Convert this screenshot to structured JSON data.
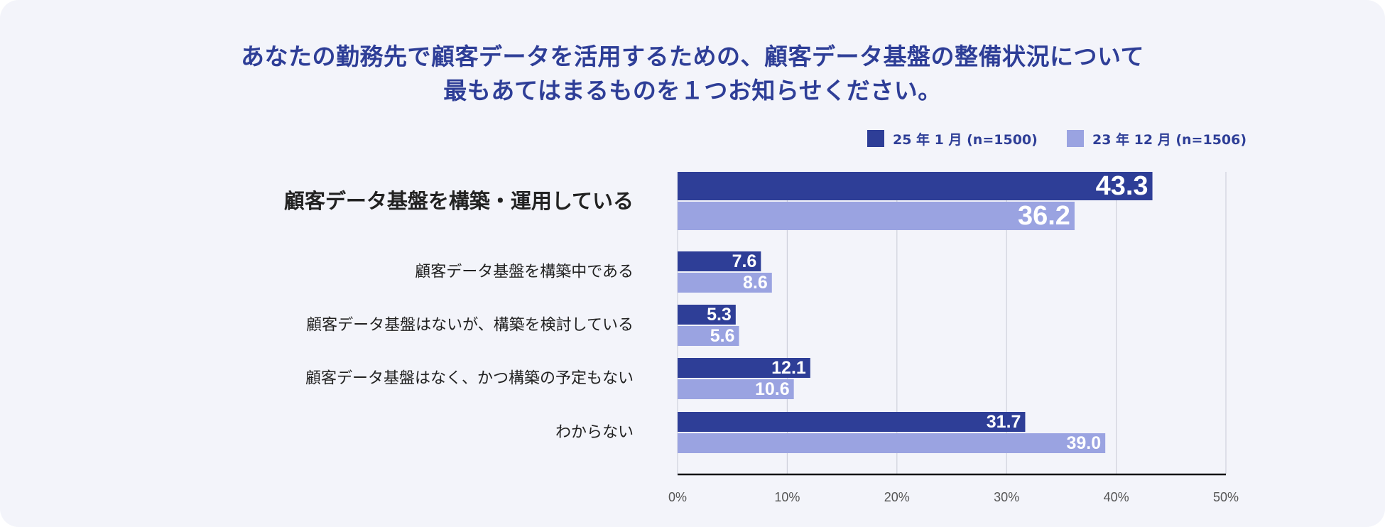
{
  "title": {
    "line1": "あなたの勤務先で顧客データを活用するための、顧客データ基盤の整備状況について",
    "line2": "最もあてはまるものを１つお知らせください。"
  },
  "legend": [
    {
      "label": "25 年 1 月 (n=1500)",
      "color": "#2e3e97"
    },
    {
      "label": "23 年 12 月 (n=1506)",
      "color": "#9aa3e1"
    }
  ],
  "chart_data": {
    "type": "bar",
    "orientation": "horizontal",
    "categories": [
      "顧客データ基盤を構築・運用している",
      "顧客データ基盤を構築中である",
      "顧客データ基盤はないが、構築を検討している",
      "顧客データ基盤はなく、かつ構築の予定もない",
      "わからない"
    ],
    "highlight_category": 0,
    "series": [
      {
        "name": "25 年 1 月 (n=1500)",
        "values": [
          43.3,
          7.6,
          5.3,
          12.1,
          31.7
        ],
        "labels": [
          "43.3",
          "7.6",
          "5.3",
          "12.1",
          "31.7"
        ],
        "color": "#2e3e97"
      },
      {
        "name": "23 年 12 月 (n=1506)",
        "values": [
          36.2,
          8.6,
          5.6,
          10.6,
          39.0
        ],
        "labels": [
          "36.2",
          "8.6",
          "5.6",
          "10.6",
          "39.0"
        ],
        "color": "#9aa3e1"
      }
    ],
    "xlim": [
      0,
      50
    ],
    "xticks": [
      0,
      10,
      20,
      30,
      40,
      50
    ],
    "xtick_labels": [
      "0%",
      "10%",
      "20%",
      "30%",
      "40%",
      "50%"
    ],
    "grid": true,
    "legend_position": "top-right",
    "xlabel": "",
    "ylabel": ""
  }
}
